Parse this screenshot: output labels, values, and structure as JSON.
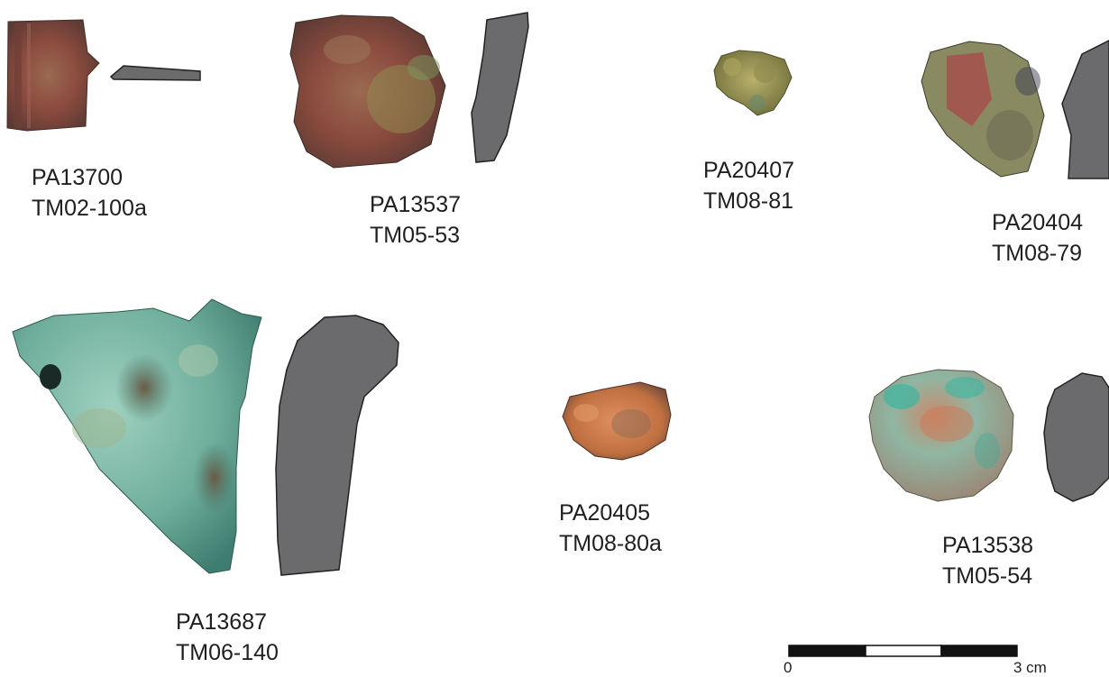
{
  "artifacts": [
    {
      "id": "PA13700",
      "code": "TM02-100a"
    },
    {
      "id": "PA13537",
      "code": "TM05-53"
    },
    {
      "id": "PA20407",
      "code": "TM08-81"
    },
    {
      "id": "PA20404",
      "code": "TM08-79"
    },
    {
      "id": "PA13687",
      "code": "TM06-140"
    },
    {
      "id": "PA20405",
      "code": "TM08-80a"
    },
    {
      "id": "PA13538",
      "code": "TM05-54"
    }
  ],
  "scale_bar": {
    "start_label": "0",
    "end_label": "3 cm"
  },
  "colors": {
    "section_fill": "#6b6b6d",
    "copper_red": "#8a4a3e",
    "dark_brown": "#5a3a33",
    "olive_green": "#9a9a52",
    "verdigris": "#5f9e8f",
    "verdigris_light": "#8cc4b2",
    "orange_ore": "#c07040",
    "malachite": "#3db5a0"
  }
}
